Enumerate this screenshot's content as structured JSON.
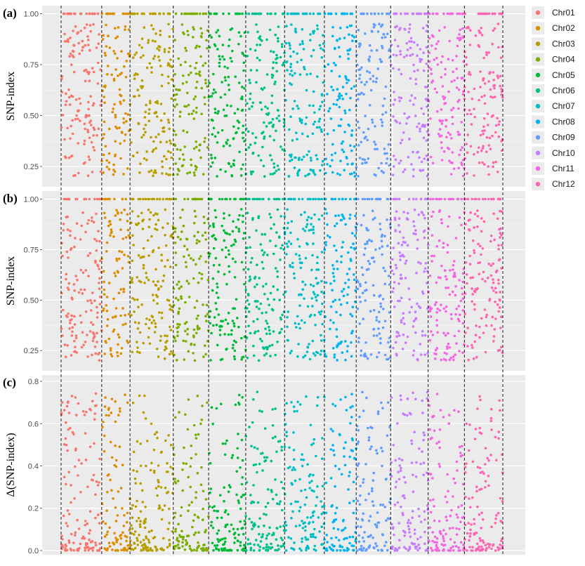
{
  "chart_data": [
    {
      "panel": "(a)",
      "type": "scatter",
      "ylabel": "SNP-index",
      "ylim": [
        0.15,
        1.04
      ],
      "yticks": [
        "0.25",
        "0.50",
        "0.75",
        "1.00"
      ],
      "ytick_values": [
        0.25,
        0.5,
        0.75,
        1.0
      ],
      "ymin_pts": 0.2,
      "ymax_pts": 0.95,
      "top_line": 1.0,
      "grid": true
    },
    {
      "panel": "(b)",
      "type": "scatter",
      "ylabel": "SNP-index",
      "ylim": [
        0.15,
        1.04
      ],
      "yticks": [
        "0.25",
        "0.50",
        "0.75",
        "1.00"
      ],
      "ytick_values": [
        0.25,
        0.5,
        0.75,
        1.0
      ],
      "ymin_pts": 0.2,
      "ymax_pts": 0.95,
      "top_line": 1.0,
      "grid": true
    },
    {
      "panel": "(c)",
      "type": "scatter",
      "ylabel": "Δ(SNP-index)",
      "ylim": [
        -0.02,
        0.83
      ],
      "yticks": [
        "0.0",
        "0.2",
        "0.4",
        "0.6",
        "0.8"
      ],
      "ytick_values": [
        0.0,
        0.2,
        0.4,
        0.6,
        0.8
      ],
      "ymin_pts": 0.0,
      "ymax_pts": 0.75,
      "top_line": null,
      "grid": true
    }
  ],
  "chromosomes": [
    {
      "name": "Chr01",
      "color": "#F8766D",
      "start": 0.0,
      "end": 0.092
    },
    {
      "name": "Chr02",
      "color": "#DE8C00",
      "start": 0.092,
      "end": 0.156
    },
    {
      "name": "Chr03",
      "color": "#B79F00",
      "start": 0.156,
      "end": 0.254
    },
    {
      "name": "Chr04",
      "color": "#7CAE00",
      "start": 0.254,
      "end": 0.334
    },
    {
      "name": "Chr05",
      "color": "#00BA38",
      "start": 0.334,
      "end": 0.418
    },
    {
      "name": "Chr06",
      "color": "#00C08B",
      "start": 0.418,
      "end": 0.506
    },
    {
      "name": "Chr07",
      "color": "#00BFC4",
      "start": 0.506,
      "end": 0.596
    },
    {
      "name": "Chr08",
      "color": "#00B4F0",
      "start": 0.596,
      "end": 0.668
    },
    {
      "name": "Chr09",
      "color": "#619CFF",
      "start": 0.668,
      "end": 0.746
    },
    {
      "name": "Chr10",
      "color": "#C77CFF",
      "start": 0.746,
      "end": 0.831
    },
    {
      "name": "Chr11",
      "color": "#F564E3",
      "start": 0.831,
      "end": 0.913
    },
    {
      "name": "Chr12",
      "color": "#FF64B0",
      "start": 0.913,
      "end": 1.0
    }
  ],
  "legend_labels": [
    "Chr01",
    "Chr02",
    "Chr03",
    "Chr04",
    "Chr05",
    "Chr06",
    "Chr07",
    "Chr08",
    "Chr09",
    "Chr10",
    "Chr11",
    "Chr12"
  ]
}
